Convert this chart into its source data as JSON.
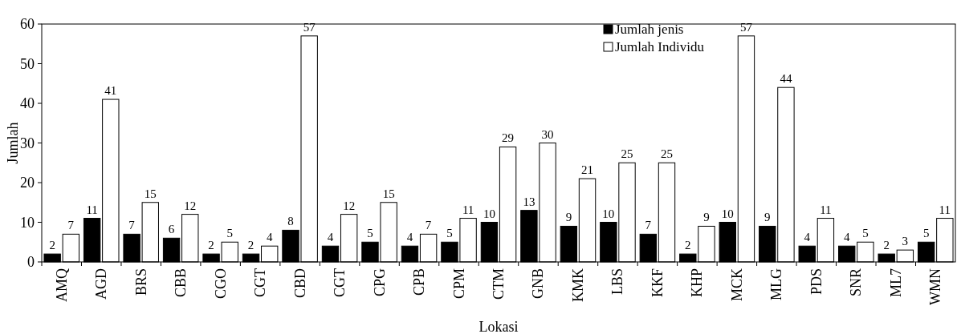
{
  "chart_data": {
    "type": "bar",
    "xlabel": "Lokasi",
    "ylabel": "Jumlah",
    "categories": [
      "AMQ",
      "AGD",
      "BRS",
      "CBB",
      "CGO",
      "CGT",
      "CBD",
      "CGT",
      "CPG",
      "CPB",
      "CPM",
      "CTM",
      "GNB",
      "KMK",
      "LBS",
      "KKF",
      "KHP",
      "MCK",
      "MLG",
      "PDS",
      "SNR",
      "ML7",
      "WMN"
    ],
    "series": [
      {
        "name": "Jumlah jenis",
        "color": "#000000",
        "values": [
          2,
          11,
          7,
          6,
          2,
          2,
          8,
          4,
          5,
          4,
          5,
          10,
          13,
          9,
          10,
          7,
          2,
          10,
          9,
          4,
          4,
          2,
          5
        ]
      },
      {
        "name": "Jumlah Individu",
        "color": "#ffffff",
        "values": [
          7,
          41,
          15,
          12,
          5,
          4,
          57,
          12,
          15,
          7,
          11,
          29,
          30,
          21,
          25,
          25,
          9,
          57,
          44,
          11,
          5,
          3,
          11
        ]
      }
    ],
    "ylim": [
      0,
      60
    ],
    "yticks": [
      0,
      10,
      20,
      30,
      40,
      50,
      60
    ],
    "grid": false,
    "legend": "top",
    "data_labels": true
  }
}
